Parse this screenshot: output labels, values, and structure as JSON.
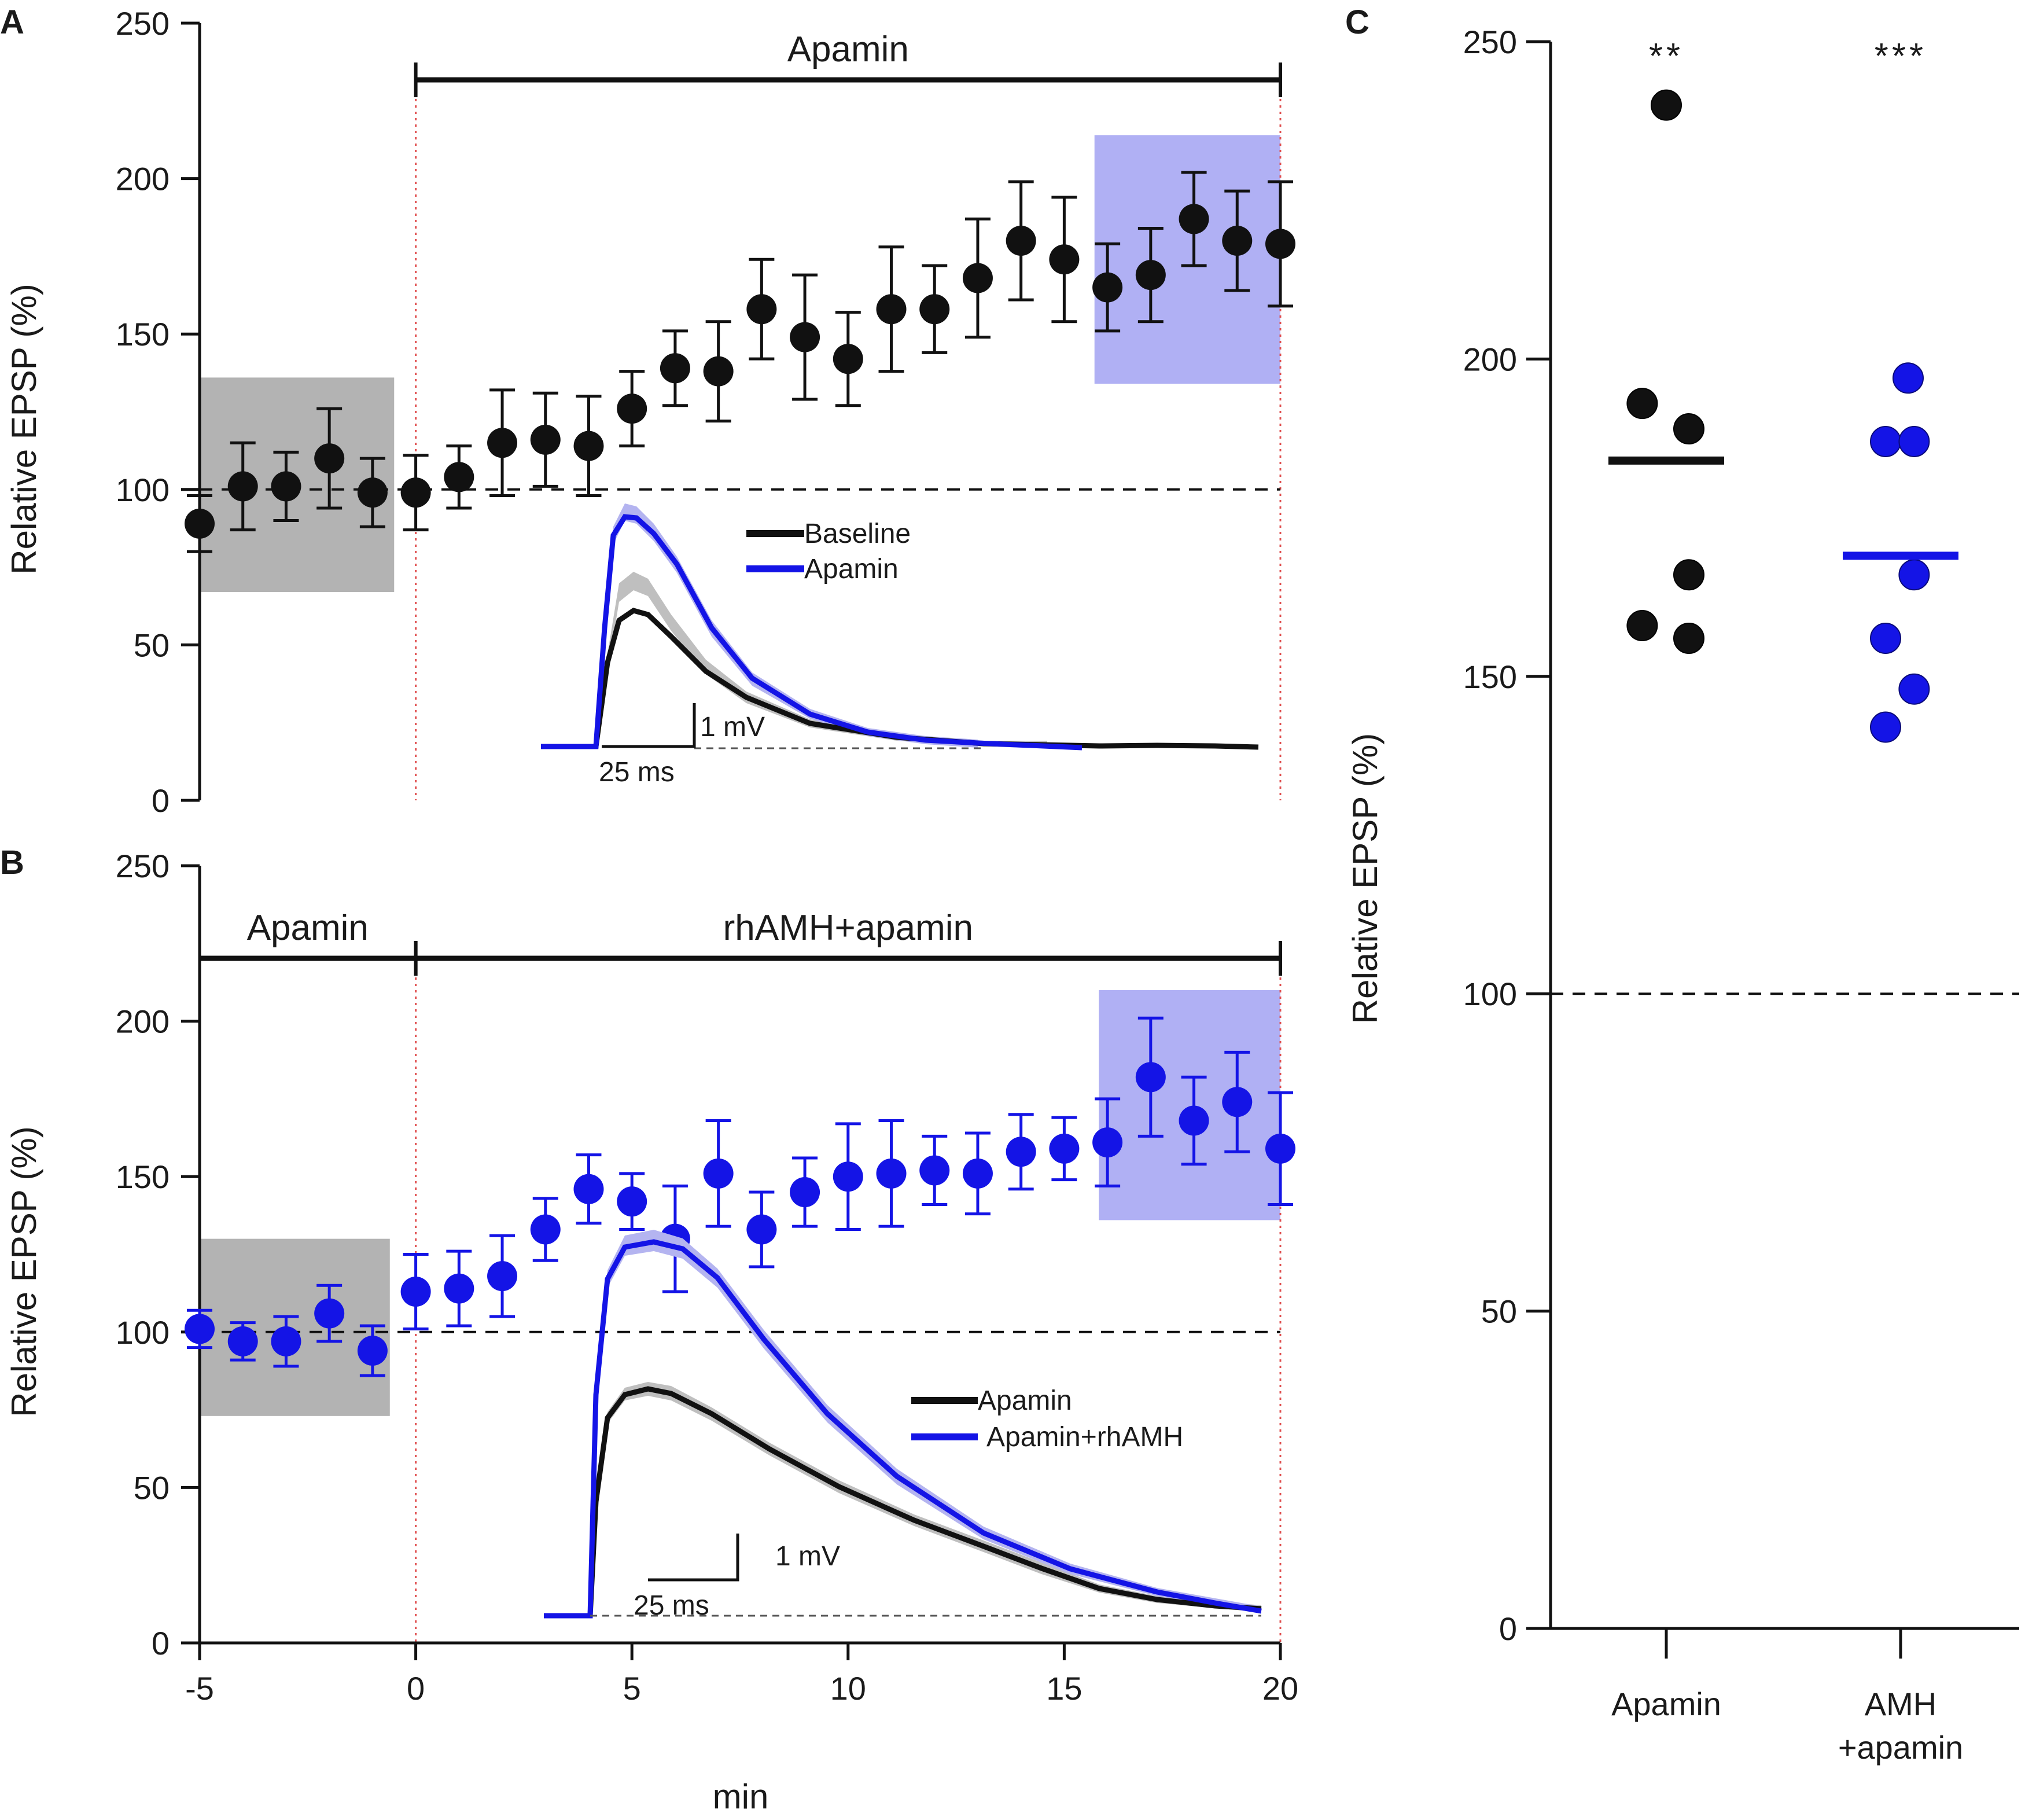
{
  "colors": {
    "black": "#111111",
    "blue": "#1414e6",
    "baseline_shade": "#b3b3b3",
    "late_shade": "#b0b0f4",
    "vline": "#e05050"
  },
  "x_axis": {
    "title": "min",
    "tick_labels": [
      "-5",
      "0",
      "5",
      "10",
      "15",
      "20"
    ]
  },
  "y_axis_title": "Relative EPSP (%)",
  "chart_data": [
    {
      "panel": "A",
      "type": "scatter",
      "title": "",
      "xlabel": "min",
      "ylabel": "Relative EPSP (%)",
      "xlim": [
        -5,
        20
      ],
      "ylim": [
        0,
        250
      ],
      "yticks": [
        "0",
        "50",
        "100",
        "150",
        "200",
        "250"
      ],
      "reference_line": 100,
      "drug_bars": [
        {
          "label": "Apamin",
          "from": 0,
          "to": 20
        }
      ],
      "shaded_regions": [
        {
          "name": "baseline",
          "x": [
            -5,
            -0.5
          ],
          "y": [
            67,
            136
          ],
          "color": "gray"
        },
        {
          "name": "late",
          "x": [
            15.7,
            20
          ],
          "y": [
            134,
            214
          ],
          "color": "blue"
        }
      ],
      "series": [
        {
          "name": "EPSP",
          "color": "black",
          "x": [
            -5,
            -4,
            -3,
            -2,
            -1,
            0,
            1,
            2,
            3,
            4,
            5,
            6,
            7,
            8,
            9,
            10,
            11,
            12,
            13,
            14,
            15,
            16,
            17,
            18,
            19,
            20
          ],
          "y": [
            89,
            101,
            101,
            110,
            99,
            99,
            104,
            115,
            116,
            114,
            126,
            139,
            138,
            158,
            149,
            142,
            158,
            158,
            168,
            180,
            174,
            165,
            169,
            187,
            180,
            179
          ],
          "err": [
            9,
            14,
            11,
            16,
            11,
            12,
            10,
            17,
            15,
            16,
            12,
            12,
            16,
            16,
            20,
            15,
            20,
            14,
            19,
            19,
            20,
            14,
            15,
            15,
            16,
            20
          ]
        }
      ],
      "inset": {
        "legend": [
          "Baseline",
          "Apamin"
        ],
        "scale_v": "1 mV",
        "scale_h": "25 ms"
      }
    },
    {
      "panel": "B",
      "type": "scatter",
      "title": "",
      "xlabel": "min",
      "ylabel": "Relative EPSP (%)",
      "xlim": [
        -5,
        20
      ],
      "ylim": [
        0,
        250
      ],
      "yticks": [
        "0",
        "50",
        "100",
        "150",
        "200",
        "250"
      ],
      "reference_line": 100,
      "drug_bars": [
        {
          "label": "Apamin",
          "from": -5,
          "to": 0
        },
        {
          "label": "rhAMH+apamin",
          "from": 0,
          "to": 20
        }
      ],
      "shaded_regions": [
        {
          "name": "baseline",
          "x": [
            -5,
            -0.6
          ],
          "y": [
            73,
            130
          ],
          "color": "gray"
        },
        {
          "name": "late",
          "x": [
            15.8,
            20
          ],
          "y": [
            136,
            210
          ],
          "color": "blue"
        }
      ],
      "series": [
        {
          "name": "EPSP",
          "color": "blue",
          "x": [
            -5,
            -4,
            -3,
            -2,
            -1,
            0,
            1,
            2,
            3,
            4,
            5,
            6,
            7,
            8,
            9,
            10,
            11,
            12,
            13,
            14,
            15,
            16,
            17,
            18,
            19,
            20
          ],
          "y": [
            101,
            97,
            97,
            106,
            94,
            113,
            114,
            118,
            133,
            146,
            142,
            130,
            151,
            133,
            145,
            150,
            151,
            152,
            151,
            158,
            159,
            161,
            182,
            168,
            174,
            159
          ],
          "err": [
            6,
            6,
            8,
            9,
            8,
            12,
            12,
            13,
            10,
            11,
            9,
            17,
            17,
            12,
            11,
            17,
            17,
            11,
            13,
            12,
            10,
            14,
            19,
            14,
            16,
            18
          ]
        }
      ],
      "inset": {
        "legend": [
          "Apamin",
          "Apamin+rhAMH"
        ],
        "scale_v": "1 mV",
        "scale_h": "25 ms"
      }
    },
    {
      "panel": "C",
      "type": "scatter",
      "title": "",
      "xlabel": "",
      "ylabel": "Relative EPSP (%)",
      "ylim": [
        0,
        250
      ],
      "yticks": [
        "0",
        "50",
        "100",
        "150",
        "200",
        "250"
      ],
      "reference_line": 100,
      "categories": [
        {
          "label_lines": [
            "Apamin"
          ],
          "color": "black",
          "significance": "**",
          "mean": 184,
          "points": [
            {
              "v": 240,
              "j": 0
            },
            {
              "v": 193,
              "j": -0.32
            },
            {
              "v": 189,
              "j": 0.3
            },
            {
              "v": 166,
              "j": 0.3
            },
            {
              "v": 158,
              "j": -0.32
            },
            {
              "v": 156,
              "j": 0.3
            }
          ]
        },
        {
          "label_lines": [
            "AMH",
            "+apamin"
          ],
          "color": "blue",
          "significance": "***",
          "mean": 169,
          "points": [
            {
              "v": 197,
              "j": 0.1
            },
            {
              "v": 187,
              "j": -0.2
            },
            {
              "v": 187,
              "j": 0.18
            },
            {
              "v": 166,
              "j": 0.18
            },
            {
              "v": 156,
              "j": -0.2
            },
            {
              "v": 148,
              "j": 0.18
            },
            {
              "v": 142,
              "j": -0.2
            }
          ]
        }
      ]
    }
  ]
}
